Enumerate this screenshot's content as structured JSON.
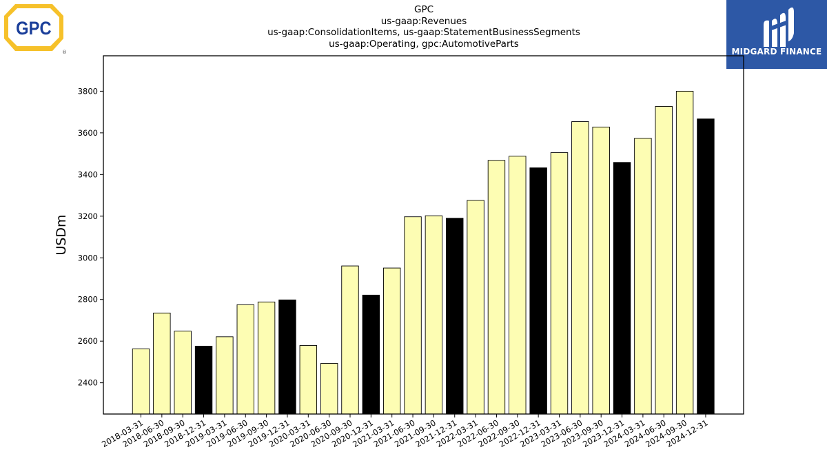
{
  "logos": {
    "company_logo_text": "GPC",
    "company_logo_mark": "®",
    "brand_name": "MIDGARD FINANCE",
    "brand_color": "#2d58a6",
    "company_logo_colors": {
      "outer": "#f6c12a",
      "inner": "#ffffff",
      "text": "#1a3e9a"
    }
  },
  "chart_data": {
    "type": "bar",
    "title_lines": [
      "GPC",
      "us-gaap:Revenues",
      "us-gaap:ConsolidationItems, us-gaap:StatementBusinessSegments",
      "us-gaap:Operating, gpc:AutomotiveParts"
    ],
    "xlabel": "",
    "ylabel": "USDm",
    "ylim": [
      2250,
      3970
    ],
    "yticks": [
      2400,
      2600,
      2800,
      3000,
      3200,
      3400,
      3600,
      3800
    ],
    "grid": false,
    "categories": [
      "2018-03-31",
      "2018-06-30",
      "2018-09-30",
      "2018-12-31",
      "2019-03-31",
      "2019-06-30",
      "2019-09-30",
      "2019-12-31",
      "2020-03-31",
      "2020-06-30",
      "2020-09-30",
      "2020-12-31",
      "2021-03-31",
      "2021-06-30",
      "2021-09-30",
      "2021-12-31",
      "2022-03-31",
      "2022-06-30",
      "2022-09-30",
      "2022-12-31",
      "2023-03-31",
      "2023-06-30",
      "2023-09-30",
      "2023-12-31",
      "2024-03-31",
      "2024-06-30",
      "2024-09-30",
      "2024-12-31"
    ],
    "values": [
      2563,
      2735,
      2648,
      2576,
      2621,
      2775,
      2788,
      2798,
      2579,
      2493,
      2961,
      2821,
      2951,
      3197,
      3202,
      3190,
      3276,
      3468,
      3488,
      3432,
      3505,
      3654,
      3628,
      3458,
      3574,
      3727,
      3800,
      3667
    ],
    "colors": {
      "quarter": "#fdfdb3",
      "year_end": "#000000",
      "edge": "#000000"
    }
  }
}
